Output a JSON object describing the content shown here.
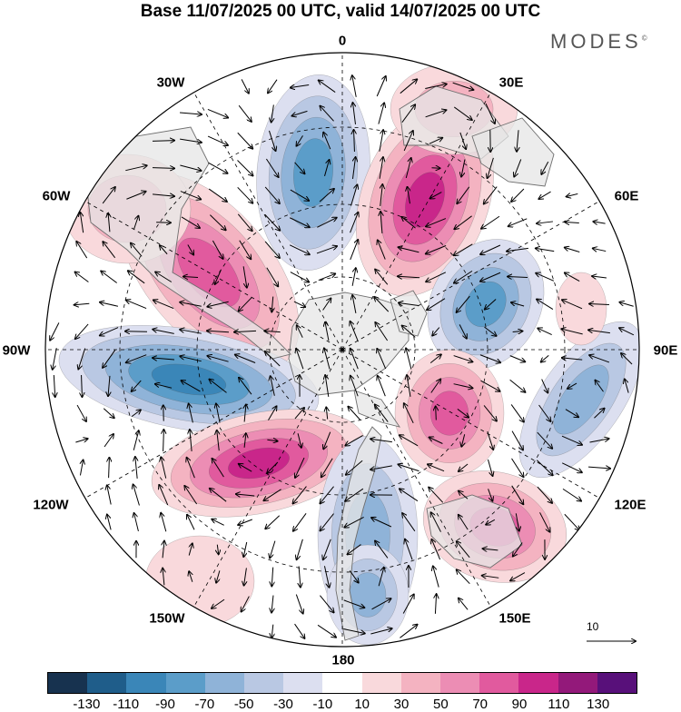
{
  "title": "Base 11/07/2025 00 UTC, valid 14/07/2025 00 UTC",
  "brand": "MODES",
  "brand_mark": "©",
  "longitude_labels": {
    "lon_0": "0",
    "lon_30e": "30E",
    "lon_60e": "60E",
    "lon_90e": "90E",
    "lon_120e": "120E",
    "lon_150e": "150E",
    "lon_180": "180",
    "lon_150w": "150W",
    "lon_120w": "120W",
    "lon_90w": "90W",
    "lon_60w": "60W",
    "lon_30w": "30W"
  },
  "reference_vector": {
    "label": "10"
  },
  "colorbar": {
    "colors": [
      "#17324f",
      "#1f5d8a",
      "#3a86b8",
      "#5b9dc9",
      "#8fb3d8",
      "#b9c8e3",
      "#dcdff0",
      "#ffffff",
      "#f9d9dc",
      "#f4b3c1",
      "#ec8db4",
      "#e15a9e",
      "#c9268a",
      "#93197a",
      "#58107a"
    ],
    "tick_labels": [
      "-130",
      "-110",
      "-90",
      "-70",
      "-50",
      "-30",
      "-10",
      "10",
      "30",
      "50",
      "70",
      "90",
      "110",
      "130"
    ]
  },
  "colors": {
    "land": "#e6e6e6",
    "coast": "#6e6e6e",
    "grid": "#000000"
  }
}
